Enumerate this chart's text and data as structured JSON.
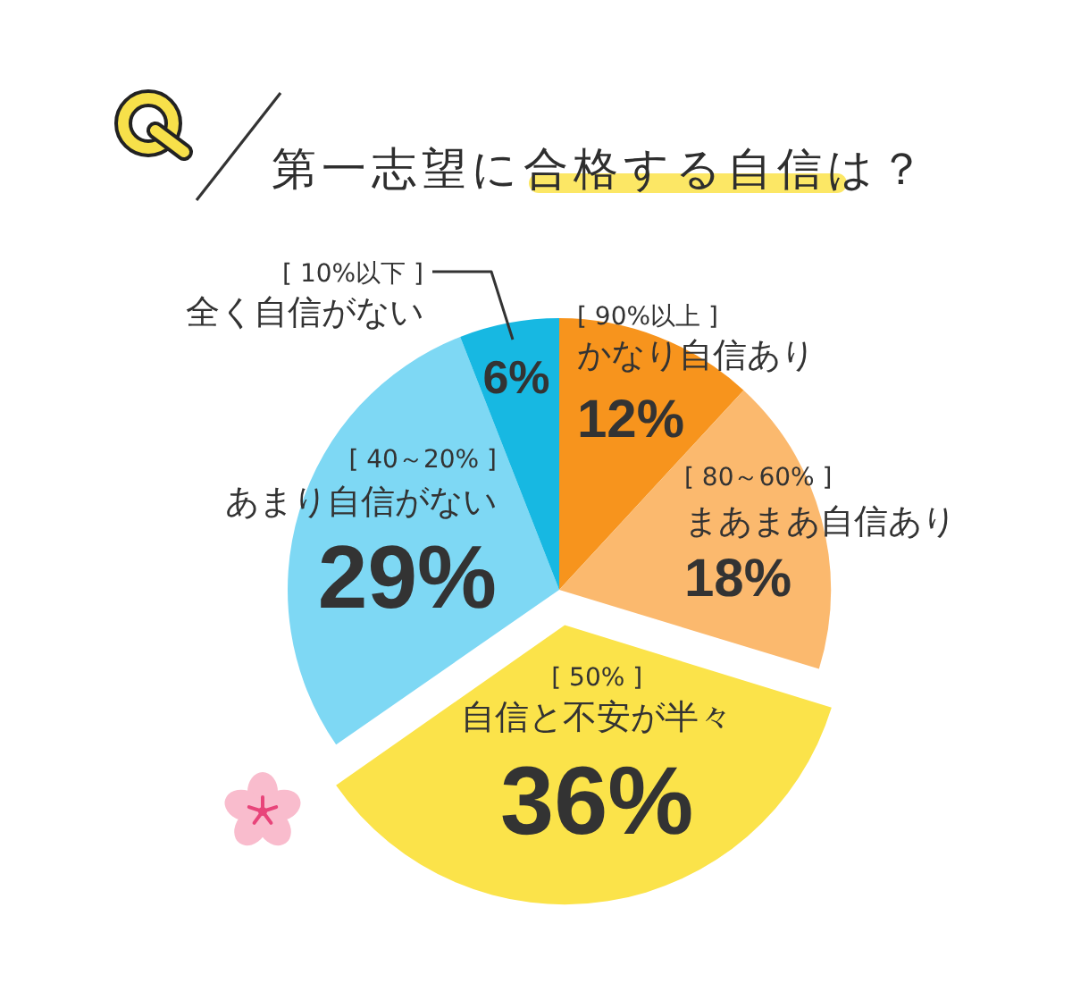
{
  "chart_data": {
    "type": "pie",
    "title": "第一志望に合格する自信は？",
    "categories": [
      "[ 90%以上 ]\nかなり自信あり",
      "[ 80～60% ]\nまあまあ自信あり",
      "[ 50% ]\n自信と不安が半々",
      "[ 40～20% ]\nあまり自信がない",
      "[ 10%以下 ]\n全く自信がない"
    ],
    "values": [
      12,
      18,
      36,
      29,
      6
    ],
    "colors": [
      "#f7941d",
      "#fbb96e",
      "#fbe34a",
      "#7ed8f4",
      "#17b8e2"
    ],
    "value_labels": [
      "12%",
      "18%",
      "36%",
      "29%",
      "6%"
    ]
  }
}
